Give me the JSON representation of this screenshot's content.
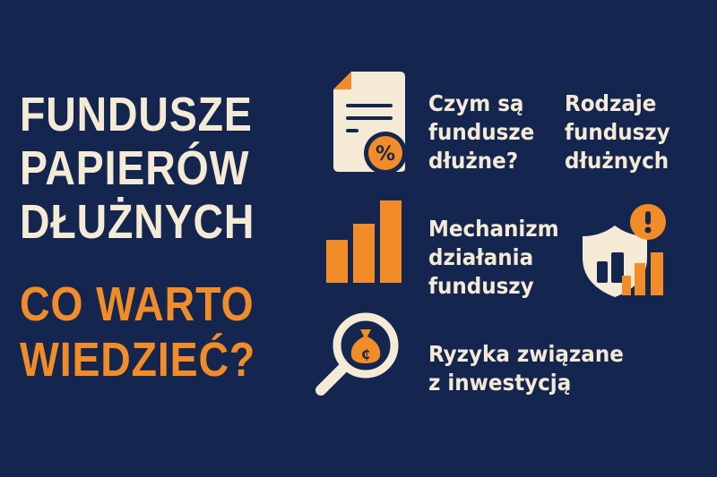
{
  "heading": {
    "lines": [
      "FUNDUSZE",
      "PAPIERÓW",
      "DŁUŻNYCH"
    ],
    "subtitle_lines": [
      "CO WARTO",
      "WIEDZIEĆ?"
    ]
  },
  "topics": [
    {
      "icon": "document-percent-icon",
      "lines": [
        "Czym są",
        "fundusze",
        "dłużne?"
      ]
    },
    {
      "icon": "none",
      "lines": [
        "Rodzaje",
        "funduszy",
        "dłużnych"
      ]
    },
    {
      "icon": "bar-chart-icon",
      "lines": [
        "Mechanizm",
        "działania",
        "funduszy"
      ]
    },
    {
      "icon": "shield-warning-chart-icon",
      "lines": []
    },
    {
      "icon": "magnifier-money-bag-icon",
      "lines": [
        "Ryzyka związane",
        "z inwestycją"
      ]
    }
  ],
  "colors": {
    "background": "#14264f",
    "cream": "#f5ead6",
    "accent": "#f28c28"
  }
}
